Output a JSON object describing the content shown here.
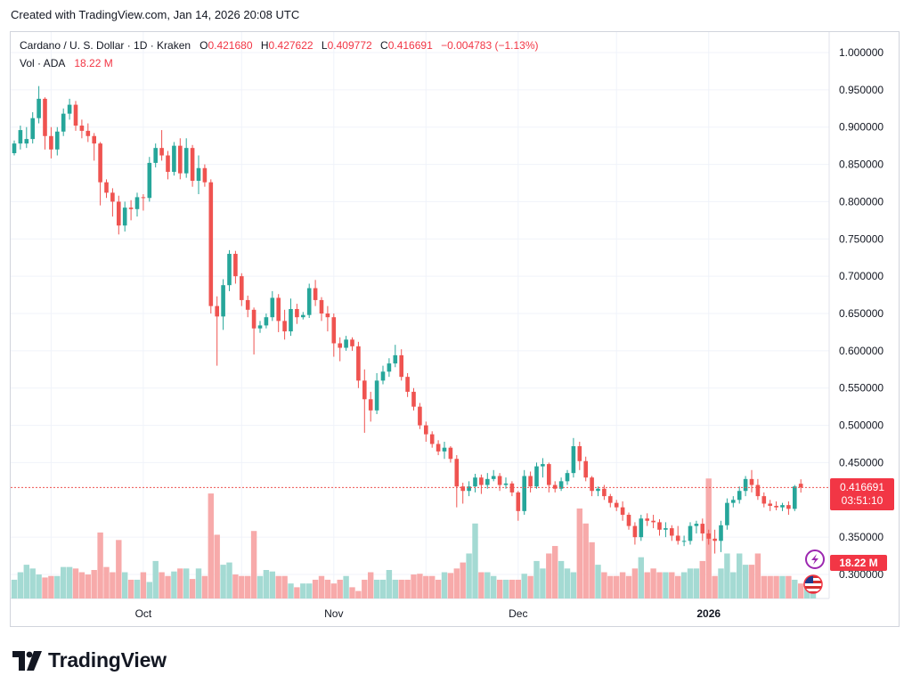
{
  "created_by": "Created with TradingView.com, Jan 14, 2026 20:08 UTC",
  "legend": {
    "symbol": "Cardano / U. S. Dollar · 1D · Kraken",
    "open_label": "O",
    "open": "0.421680",
    "high_label": "H",
    "high": "0.427622",
    "low_label": "L",
    "low": "0.409772",
    "close_label": "C",
    "close": "0.416691",
    "change": "−0.004783 (−1.13%)",
    "vol_label": "Vol · ADA",
    "vol_value": "18.22 M"
  },
  "price_tag": {
    "price": "0.416691",
    "countdown": "03:51:10"
  },
  "volume_tag": "18.22 M",
  "brand": "TradingView",
  "icons": {
    "flash": "flash-icon",
    "flag": "us-flag-icon",
    "logo": "tradingview-logo-icon"
  },
  "colors": {
    "up": "#26a69a",
    "down": "#ef5350",
    "up_vol": "#a4dad3",
    "down_vol": "#f7aaaa",
    "last_line": "#ef5350",
    "grid": "#f0f3fa"
  },
  "chart_data": {
    "type": "candlestick",
    "series_name": "Cardano / U. S. Dollar",
    "ylim": [
      0.27,
      1.03
    ],
    "ytick_labels": [
      "1.000000",
      "0.950000",
      "0.900000",
      "0.850000",
      "0.800000",
      "0.750000",
      "0.700000",
      "0.650000",
      "0.600000",
      "0.550000",
      "0.500000",
      "0.450000",
      "0.350000",
      "0.300000"
    ],
    "ytick_values": [
      1.0,
      0.95,
      0.9,
      0.85,
      0.8,
      0.75,
      0.7,
      0.65,
      0.6,
      0.55,
      0.5,
      0.45,
      0.35,
      0.3
    ],
    "xtick_labels": [
      {
        "label": "Oct",
        "index": 21,
        "bold": false
      },
      {
        "label": "Nov",
        "index": 52,
        "bold": false
      },
      {
        "label": "Dec",
        "index": 82,
        "bold": false
      },
      {
        "label": "2026",
        "index": 113,
        "bold": true
      }
    ],
    "last_close": 0.416691,
    "candles": [
      [
        0.865,
        0.882,
        0.862,
        0.878
      ],
      [
        0.878,
        0.902,
        0.87,
        0.896
      ],
      [
        0.878,
        0.9,
        0.872,
        0.884
      ],
      [
        0.884,
        0.92,
        0.878,
        0.912
      ],
      [
        0.912,
        0.955,
        0.905,
        0.938
      ],
      [
        0.938,
        0.94,
        0.87,
        0.888
      ],
      [
        0.888,
        0.9,
        0.858,
        0.87
      ],
      [
        0.87,
        0.9,
        0.862,
        0.894
      ],
      [
        0.894,
        0.925,
        0.888,
        0.918
      ],
      [
        0.918,
        0.938,
        0.91,
        0.93
      ],
      [
        0.93,
        0.935,
        0.895,
        0.902
      ],
      [
        0.902,
        0.91,
        0.885,
        0.895
      ],
      [
        0.895,
        0.905,
        0.88,
        0.888
      ],
      [
        0.888,
        0.892,
        0.855,
        0.878
      ],
      [
        0.878,
        0.88,
        0.795,
        0.826
      ],
      [
        0.826,
        0.83,
        0.805,
        0.812
      ],
      [
        0.812,
        0.818,
        0.78,
        0.8
      ],
      [
        0.8,
        0.808,
        0.756,
        0.768
      ],
      [
        0.768,
        0.8,
        0.76,
        0.792
      ],
      [
        0.792,
        0.802,
        0.775,
        0.79
      ],
      [
        0.79,
        0.812,
        0.78,
        0.806
      ],
      [
        0.806,
        0.81,
        0.788,
        0.805
      ],
      [
        0.805,
        0.86,
        0.8,
        0.852
      ],
      [
        0.852,
        0.878,
        0.846,
        0.872
      ],
      [
        0.872,
        0.896,
        0.855,
        0.862
      ],
      [
        0.862,
        0.868,
        0.83,
        0.84
      ],
      [
        0.84,
        0.88,
        0.835,
        0.875
      ],
      [
        0.875,
        0.885,
        0.83,
        0.838
      ],
      [
        0.838,
        0.885,
        0.832,
        0.872
      ],
      [
        0.872,
        0.876,
        0.82,
        0.828
      ],
      [
        0.828,
        0.862,
        0.81,
        0.845
      ],
      [
        0.845,
        0.85,
        0.82,
        0.826
      ],
      [
        0.826,
        0.83,
        0.65,
        0.66
      ],
      [
        0.66,
        0.673,
        0.58,
        0.646
      ],
      [
        0.646,
        0.696,
        0.628,
        0.688
      ],
      [
        0.688,
        0.735,
        0.68,
        0.73
      ],
      [
        0.73,
        0.734,
        0.69,
        0.7
      ],
      [
        0.7,
        0.704,
        0.66,
        0.668
      ],
      [
        0.668,
        0.674,
        0.645,
        0.655
      ],
      [
        0.655,
        0.658,
        0.595,
        0.63
      ],
      [
        0.63,
        0.64,
        0.624,
        0.634
      ],
      [
        0.634,
        0.65,
        0.63,
        0.645
      ],
      [
        0.645,
        0.68,
        0.64,
        0.671
      ],
      [
        0.671,
        0.676,
        0.625,
        0.64
      ],
      [
        0.64,
        0.655,
        0.615,
        0.626
      ],
      [
        0.626,
        0.67,
        0.62,
        0.656
      ],
      [
        0.656,
        0.663,
        0.636,
        0.645
      ],
      [
        0.645,
        0.652,
        0.642,
        0.648
      ],
      [
        0.648,
        0.69,
        0.644,
        0.684
      ],
      [
        0.684,
        0.695,
        0.66,
        0.668
      ],
      [
        0.668,
        0.672,
        0.64,
        0.65
      ],
      [
        0.65,
        0.66,
        0.626,
        0.645
      ],
      [
        0.645,
        0.65,
        0.592,
        0.61
      ],
      [
        0.61,
        0.618,
        0.586,
        0.604
      ],
      [
        0.604,
        0.62,
        0.6,
        0.615
      ],
      [
        0.615,
        0.618,
        0.6,
        0.606
      ],
      [
        0.606,
        0.612,
        0.55,
        0.56
      ],
      [
        0.56,
        0.575,
        0.49,
        0.535
      ],
      [
        0.535,
        0.545,
        0.505,
        0.52
      ],
      [
        0.52,
        0.57,
        0.515,
        0.56
      ],
      [
        0.56,
        0.58,
        0.555,
        0.572
      ],
      [
        0.572,
        0.59,
        0.565,
        0.583
      ],
      [
        0.583,
        0.608,
        0.578,
        0.594
      ],
      [
        0.594,
        0.602,
        0.56,
        0.565
      ],
      [
        0.565,
        0.57,
        0.538,
        0.545
      ],
      [
        0.545,
        0.55,
        0.52,
        0.525
      ],
      [
        0.525,
        0.53,
        0.495,
        0.5
      ],
      [
        0.5,
        0.505,
        0.478,
        0.488
      ],
      [
        0.488,
        0.492,
        0.47,
        0.475
      ],
      [
        0.475,
        0.48,
        0.46,
        0.465
      ],
      [
        0.465,
        0.478,
        0.455,
        0.47
      ],
      [
        0.47,
        0.472,
        0.45,
        0.455
      ],
      [
        0.455,
        0.46,
        0.39,
        0.418
      ],
      [
        0.418,
        0.423,
        0.395,
        0.412
      ],
      [
        0.412,
        0.425,
        0.405,
        0.418
      ],
      [
        0.418,
        0.435,
        0.41,
        0.43
      ],
      [
        0.43,
        0.434,
        0.408,
        0.42
      ],
      [
        0.42,
        0.436,
        0.415,
        0.428
      ],
      [
        0.428,
        0.44,
        0.425,
        0.432
      ],
      [
        0.432,
        0.436,
        0.412,
        0.42
      ],
      [
        0.42,
        0.43,
        0.415,
        0.422
      ],
      [
        0.422,
        0.425,
        0.405,
        0.41
      ],
      [
        0.41,
        0.412,
        0.372,
        0.385
      ],
      [
        0.385,
        0.44,
        0.38,
        0.432
      ],
      [
        0.432,
        0.438,
        0.41,
        0.418
      ],
      [
        0.418,
        0.45,
        0.415,
        0.445
      ],
      [
        0.445,
        0.456,
        0.43,
        0.448
      ],
      [
        0.448,
        0.45,
        0.41,
        0.42
      ],
      [
        0.42,
        0.425,
        0.41,
        0.415
      ],
      [
        0.415,
        0.43,
        0.412,
        0.425
      ],
      [
        0.425,
        0.44,
        0.42,
        0.436
      ],
      [
        0.436,
        0.483,
        0.43,
        0.472
      ],
      [
        0.472,
        0.478,
        0.44,
        0.452
      ],
      [
        0.452,
        0.458,
        0.425,
        0.43
      ],
      [
        0.43,
        0.432,
        0.405,
        0.412
      ],
      [
        0.412,
        0.418,
        0.405,
        0.415
      ],
      [
        0.415,
        0.42,
        0.4,
        0.405
      ],
      [
        0.405,
        0.408,
        0.39,
        0.396
      ],
      [
        0.396,
        0.4,
        0.385,
        0.39
      ],
      [
        0.39,
        0.398,
        0.372,
        0.38
      ],
      [
        0.38,
        0.383,
        0.36,
        0.365
      ],
      [
        0.365,
        0.37,
        0.34,
        0.35
      ],
      [
        0.35,
        0.38,
        0.345,
        0.375
      ],
      [
        0.375,
        0.382,
        0.365,
        0.372
      ],
      [
        0.372,
        0.38,
        0.362,
        0.37
      ],
      [
        0.37,
        0.374,
        0.352,
        0.36
      ],
      [
        0.36,
        0.37,
        0.35,
        0.362
      ],
      [
        0.362,
        0.366,
        0.345,
        0.352
      ],
      [
        0.352,
        0.365,
        0.34,
        0.345
      ],
      [
        0.345,
        0.352,
        0.338,
        0.345
      ],
      [
        0.345,
        0.37,
        0.34,
        0.365
      ],
      [
        0.365,
        0.372,
        0.355,
        0.368
      ],
      [
        0.368,
        0.375,
        0.345,
        0.355
      ],
      [
        0.355,
        0.36,
        0.34,
        0.348
      ],
      [
        0.348,
        0.36,
        0.328,
        0.345
      ],
      [
        0.345,
        0.372,
        0.33,
        0.366
      ],
      [
        0.366,
        0.402,
        0.36,
        0.396
      ],
      [
        0.396,
        0.405,
        0.39,
        0.4
      ],
      [
        0.4,
        0.418,
        0.395,
        0.412
      ],
      [
        0.412,
        0.432,
        0.405,
        0.428
      ],
      [
        0.428,
        0.44,
        0.41,
        0.42
      ],
      [
        0.42,
        0.428,
        0.4,
        0.405
      ],
      [
        0.405,
        0.41,
        0.39,
        0.395
      ],
      [
        0.395,
        0.4,
        0.385,
        0.392
      ],
      [
        0.392,
        0.398,
        0.386,
        0.39
      ],
      [
        0.39,
        0.396,
        0.385,
        0.393
      ],
      [
        0.393,
        0.398,
        0.38,
        0.388
      ],
      [
        0.388,
        0.42,
        0.385,
        0.418
      ],
      [
        0.42168,
        0.427622,
        0.409772,
        0.416691
      ]
    ],
    "volume_series_name": "Vol · ADA",
    "volume": [
      2.5,
      3.5,
      4.5,
      4.0,
      3.2,
      2.8,
      3.0,
      3.0,
      4.2,
      4.2,
      4.0,
      3.5,
      3.2,
      3.8,
      8.8,
      4.2,
      3.5,
      7.8,
      3.5,
      2.5,
      2.5,
      3.5,
      2.2,
      5.0,
      3.5,
      3.0,
      3.6,
      4.0,
      4.0,
      2.6,
      4.0,
      3.0,
      14.0,
      8.5,
      4.5,
      4.8,
      3.2,
      3.0,
      3.0,
      9.0,
      3.0,
      3.8,
      3.6,
      3.0,
      3.0,
      2.0,
      1.5,
      2.0,
      2.0,
      2.5,
      3.0,
      2.5,
      2.0,
      2.5,
      3.0,
      1.5,
      1.0,
      2.5,
      3.5,
      2.5,
      2.5,
      3.8,
      2.5,
      2.5,
      2.5,
      3.2,
      3.3,
      3.0,
      3.0,
      2.5,
      3.5,
      3.4,
      4.0,
      4.8,
      6.0,
      10.0,
      3.5,
      3.5,
      3.0,
      2.5,
      2.5,
      2.5,
      2.5,
      3.3,
      3.0,
      5.0,
      4.0,
      6.0,
      7.0,
      5.0,
      4.0,
      3.5,
      12.0,
      10.0,
      7.5,
      4.5,
      3.5,
      3.0,
      3.0,
      3.5,
      3.0,
      4.0,
      5.5,
      3.5,
      4.0,
      3.5,
      3.5,
      3.5,
      3.0,
      3.5,
      4.0,
      4.0,
      5.0,
      16.0,
      3.0,
      4.0,
      6.0,
      3.5,
      6.0,
      4.5,
      4.5,
      6.0,
      3.0,
      3.0,
      3.0,
      3.0,
      3.0,
      2.5,
      2.0,
      2.0,
      2.5
    ],
    "volume_ylim": [
      0,
      19
    ]
  }
}
